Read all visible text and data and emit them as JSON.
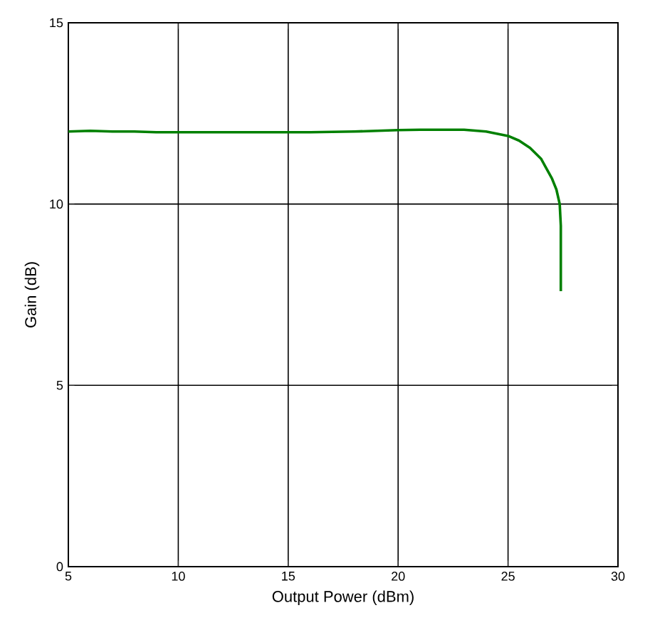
{
  "chart_data": {
    "type": "line",
    "xlabel": "Output Power (dBm)",
    "ylabel": "Gain (dB)",
    "xlim": [
      5,
      30
    ],
    "ylim": [
      0,
      15
    ],
    "xticks": [
      5,
      10,
      15,
      20,
      25,
      30
    ],
    "yticks": [
      0,
      5,
      10,
      15
    ],
    "grid": true,
    "line_style": "solid",
    "marker": "none",
    "series": [
      {
        "color": "#008000",
        "x": [
          5,
          6,
          7,
          8,
          9,
          10,
          12,
          14,
          16,
          18,
          20,
          21,
          22,
          23,
          24,
          25,
          25.5,
          26,
          26.5,
          27,
          27.2,
          27.35,
          27.4,
          27.4
        ],
        "values": [
          12.0,
          12.02,
          12.0,
          12.0,
          11.98,
          11.98,
          11.98,
          11.98,
          11.98,
          12.0,
          12.04,
          12.05,
          12.05,
          12.05,
          12.0,
          11.88,
          11.75,
          11.55,
          11.25,
          10.7,
          10.4,
          10.0,
          9.4,
          7.6
        ]
      }
    ]
  }
}
